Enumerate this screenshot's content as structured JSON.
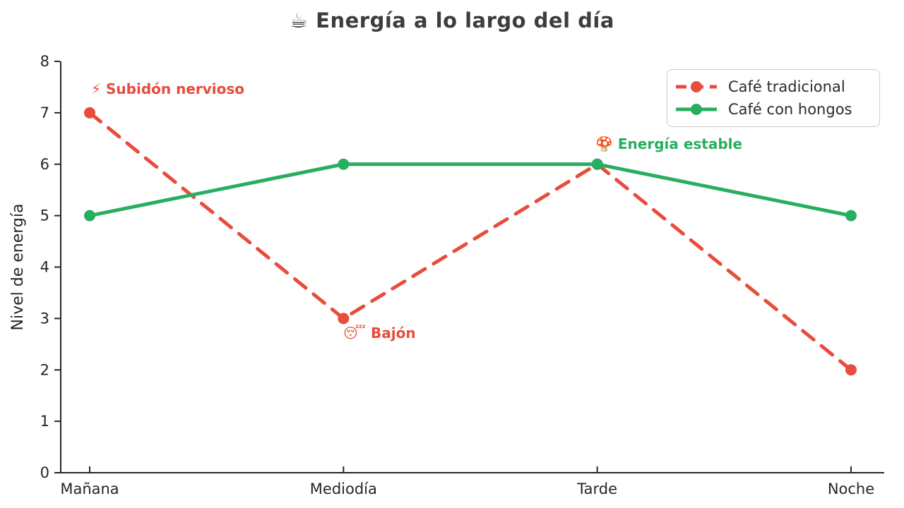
{
  "title": "☕ Energía a lo largo del día",
  "colors": {
    "traditional_red": "#e74c3c",
    "mushroom_green": "#27ae60",
    "axis_text": "#262626",
    "title_text": "#3d3d3d"
  },
  "chart_data": {
    "type": "line",
    "title": "☕ Energía a lo largo del día",
    "categories": [
      "Mañana",
      "Mediodía",
      "Tarde",
      "Noche"
    ],
    "series": [
      {
        "name": "Café tradicional",
        "values": [
          7,
          3,
          6,
          2
        ],
        "color": "#e74c3c",
        "style": "dashed",
        "marker": "circle"
      },
      {
        "name": "Café con hongos",
        "values": [
          5,
          6,
          6,
          5
        ],
        "color": "#27ae60",
        "style": "solid",
        "marker": "circle"
      }
    ],
    "xlabel": "",
    "ylabel": "Nivel de energía",
    "ylim": [
      0,
      8
    ],
    "yticks": [
      0,
      1,
      2,
      3,
      4,
      5,
      6,
      7,
      8
    ],
    "grid": false,
    "legend_position": "upper right",
    "annotations": [
      {
        "text": "⚡ Subidón nervioso",
        "color": "#e74c3c",
        "category": "Mañana",
        "value": 7
      },
      {
        "text": "😴 Bajón",
        "color": "#e74c3c",
        "category": "Mediodía",
        "value": 3
      },
      {
        "text": "🍄 Energía estable",
        "color": "#27ae60",
        "category": "Tarde",
        "value": 6
      }
    ]
  }
}
